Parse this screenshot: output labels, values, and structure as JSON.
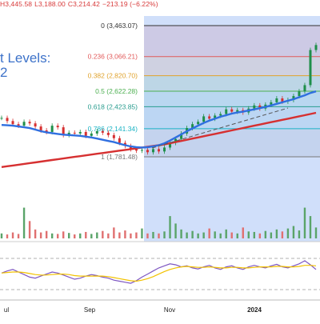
{
  "header": {
    "ohlc": [
      {
        "text": "H3,445.58",
        "color": "#d83a3a"
      },
      {
        "text": "L3,188.00",
        "color": "#d83a3a"
      },
      {
        "text": "C3,214.42",
        "color": "#d83a3a"
      },
      {
        "text": "−213.19 (−6.22%)",
        "color": "#d83a3a"
      }
    ]
  },
  "title": {
    "line1": "t Levels:",
    "line2": "2"
  },
  "chart_data": {
    "type": "line",
    "x_axis_labels": [
      "ul",
      "Sep",
      "Nov",
      "2024"
    ],
    "fibonacci_levels": [
      {
        "label": "0 (3,463.07)",
        "ratio": 0,
        "price": 3463.07,
        "color": "#333333",
        "band": "#f9d0d0"
      },
      {
        "label": "0.236 (3,066.21)",
        "ratio": 0.236,
        "price": 3066.21,
        "color": "#e25a5a",
        "band": "#fde1c7"
      },
      {
        "label": "0.382 (2,820.70)",
        "ratio": 0.382,
        "price": 2820.7,
        "color": "#e0a22b",
        "band": "#d6ecd3"
      },
      {
        "label": "0.5 (2,622.28)",
        "ratio": 0.5,
        "price": 2622.28,
        "color": "#4caf50",
        "band": "#cdeee9"
      },
      {
        "label": "0.618 (2,423.85)",
        "ratio": 0.618,
        "price": 2423.85,
        "color": "#2a9d8f",
        "band": "#d2ecf0"
      },
      {
        "label": "0.786 (2,141.34)",
        "ratio": 0.786,
        "price": 2141.34,
        "color": "#1ab3c4",
        "band": "#e4e4e4"
      },
      {
        "label": "1 (1,781.48)",
        "ratio": 1,
        "price": 1781.48,
        "color": "#777777",
        "band": null
      }
    ],
    "price_series": [
      2280,
      2240,
      2200,
      2180,
      2230,
      2210,
      2170,
      2120,
      2100,
      2180,
      2160,
      2060,
      2090,
      2080,
      2100,
      2050,
      2080,
      2110,
      2090,
      2060,
      2020,
      1960,
      1920,
      1880,
      1860,
      1870,
      1840,
      1880,
      1850,
      1900,
      1960,
      2010,
      2080,
      2150,
      2200,
      2230,
      2300,
      2270,
      2310,
      2330,
      2390,
      2360,
      2380,
      2350,
      2400,
      2440,
      2400,
      2450,
      2480,
      2530,
      2490,
      2510,
      2560,
      2620,
      2700,
      3150,
      3214
    ],
    "ma50": [
      2190,
      2185,
      2180,
      2170,
      2160,
      2150,
      2130,
      2110,
      2095,
      2085,
      2075,
      2065,
      2060,
      2055,
      2050,
      2040,
      2030,
      2015,
      2000,
      1985,
      1970,
      1950,
      1930,
      1915,
      1905,
      1900,
      1905,
      1915,
      1930,
      1955,
      1990,
      2030,
      2070,
      2110,
      2145,
      2180,
      2215,
      2245,
      2270,
      2295,
      2315,
      2335,
      2350,
      2360,
      2375,
      2390,
      2405,
      2420,
      2440,
      2460,
      2480,
      2500,
      2520,
      2545,
      2570,
      2600,
      2620
    ],
    "ma200": [
      1650,
      1660,
      1670,
      1680,
      1690,
      1700,
      1710,
      1720,
      1730,
      1740,
      1750,
      1760,
      1770,
      1780,
      1790,
      1800,
      1810,
      1820,
      1830,
      1840,
      1850,
      1860,
      1870,
      1880,
      1890,
      1900,
      1910,
      1920,
      1930,
      1940,
      1955,
      1970,
      1985,
      2000,
      2015,
      2030,
      2045,
      2060,
      2075,
      2090,
      2105,
      2120,
      2135,
      2150,
      2165,
      2180,
      2195,
      2210,
      2225,
      2240,
      2255,
      2270,
      2285,
      2300,
      2315,
      2330,
      2345
    ],
    "volume": [
      0.1,
      0.08,
      0.12,
      0.09,
      0.62,
      0.35,
      0.18,
      0.12,
      0.15,
      0.1,
      0.09,
      0.14,
      0.11,
      0.08,
      0.1,
      0.13,
      0.09,
      0.12,
      0.15,
      0.1,
      0.22,
      0.12,
      0.16,
      0.1,
      0.12,
      0.2,
      0.1,
      0.13,
      0.1,
      0.14,
      0.45,
      0.3,
      0.18,
      0.12,
      0.15,
      0.1,
      0.12,
      0.2,
      0.14,
      0.1,
      0.18,
      0.12,
      0.1,
      0.22,
      0.14,
      0.13,
      0.1,
      0.15,
      0.12,
      0.18,
      0.14,
      0.2,
      0.25,
      0.16,
      0.62,
      0.45,
      0.22
    ],
    "rsi": [
      48,
      52,
      55,
      50,
      45,
      40,
      38,
      42,
      46,
      50,
      48,
      44,
      40,
      36,
      38,
      42,
      45,
      43,
      40,
      38,
      34,
      32,
      30,
      28,
      33,
      40,
      46,
      52,
      58,
      62,
      66,
      64,
      60,
      62,
      58,
      56,
      60,
      63,
      58,
      55,
      60,
      62,
      58,
      55,
      60,
      63,
      60,
      58,
      62,
      65,
      60,
      58,
      62,
      66,
      72,
      64,
      55
    ],
    "rsi_ma": [
      48,
      49,
      50,
      50,
      49,
      47,
      45,
      44,
      44,
      45,
      46,
      46,
      45,
      43,
      42,
      42,
      42,
      42,
      42,
      41,
      39,
      37,
      35,
      33,
      32,
      34,
      37,
      41,
      46,
      51,
      55,
      58,
      60,
      61,
      60,
      59,
      59,
      60,
      59,
      58,
      58,
      59,
      59,
      58,
      58,
      59,
      60,
      60,
      60,
      61,
      61,
      60,
      60,
      61,
      63,
      63,
      62
    ]
  }
}
